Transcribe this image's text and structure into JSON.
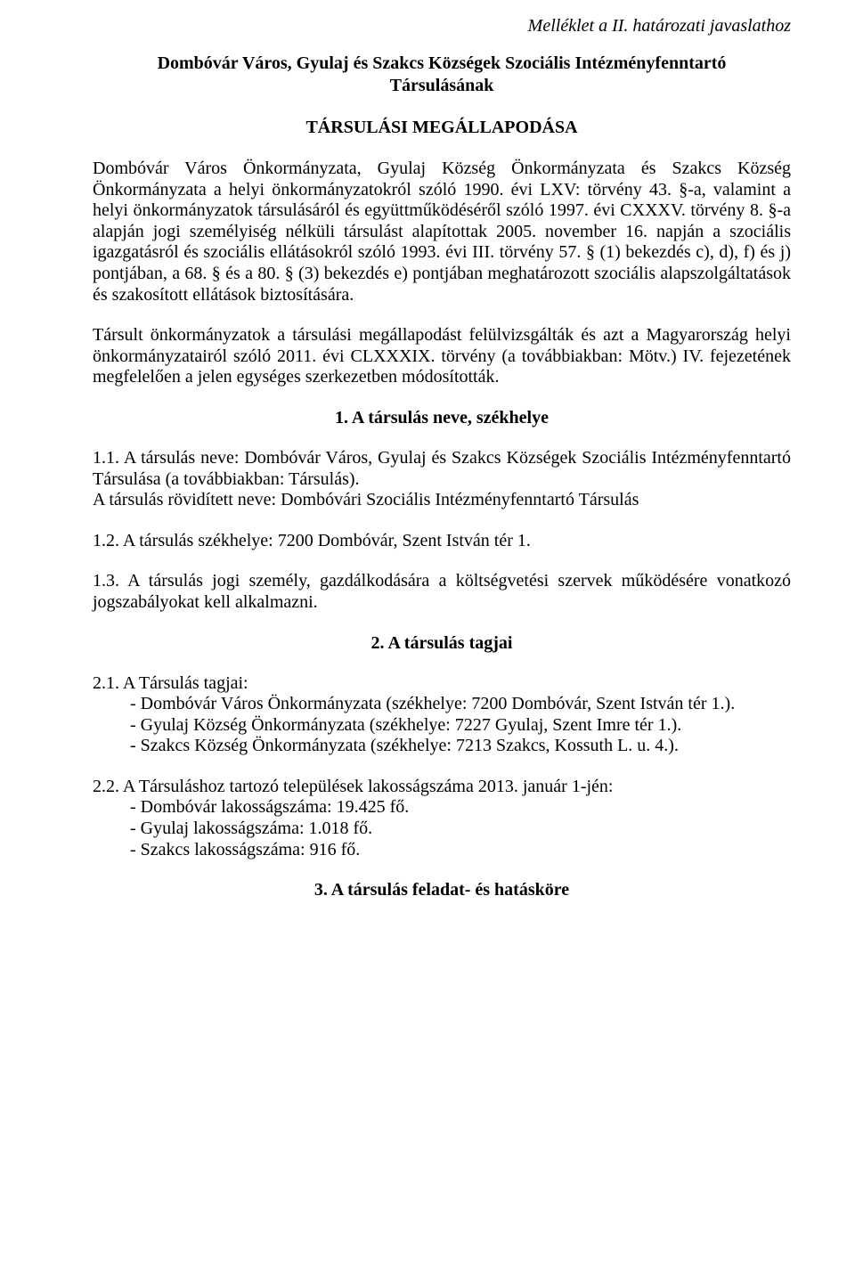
{
  "attachment_note": "Melléklet a II. határozati javaslathoz",
  "title_line1": "Dombóvár Város, Gyulaj és Szakcs Községek Szociális Intézményfenntartó",
  "title_line2": "Társulásának",
  "title_agreement": "TÁRSULÁSI MEGÁLLAPODÁSA",
  "para1": "Dombóvár Város Önkormányzata, Gyulaj Község Önkormányzata és Szakcs Község Önkormányzata a helyi önkormányzatokról szóló 1990. évi LXV: törvény 43. §-a, valamint a helyi önkormányzatok társulásáról és együttműködéséről szóló 1997. évi CXXXV. törvény 8. §-a alapján jogi személyiség nélküli társulást alapítottak 2005. november 16. napján a szociális igazgatásról és szociális ellátásokról szóló 1993. évi III. törvény 57. § (1) bekezdés c), d), f) és j) pontjában, a 68. § és a 80. § (3) bekezdés e) pontjában meghatározott szociális alapszolgáltatások és szakosított ellátások biztosítására.",
  "para2": "Társult önkormányzatok a társulási megállapodást felülvizsgálták és azt a Magyarország helyi önkormányzatairól szóló 2011. évi CLXXXIX. törvény (a továbbiakban: Mötv.) IV. fejezetének megfelelően a jelen egységes szerkezetben módosították.",
  "section1": {
    "heading": "1. A társulás neve, székhelye",
    "p1_1": "1.1. A társulás neve: Dombóvár Város, Gyulaj és Szakcs Községek Szociális Intézményfenntartó Társulása (a továbbiakban: Társulás).",
    "p1_1b": "A társulás rövidített neve: Dombóvári Szociális Intézményfenntartó Társulás",
    "p1_2": "1.2. A társulás székhelye: 7200 Dombóvár, Szent István tér 1.",
    "p1_3": "1.3. A társulás jogi személy, gazdálkodására a költségvetési szervek működésére vonatkozó jogszabályokat kell alkalmazni."
  },
  "section2": {
    "heading": "2. A társulás tagjai",
    "p2_1_lead": "2.1. A Társulás tagjai:",
    "members": [
      "- Dombóvár Város Önkormányzata (székhelye: 7200 Dombóvár, Szent István tér 1.).",
      "- Gyulaj Község Önkormányzata (székhelye: 7227 Gyulaj, Szent Imre tér 1.).",
      "- Szakcs Község Önkormányzata (székhelye: 7213 Szakcs, Kossuth L. u. 4.)."
    ],
    "p2_2_lead": "2.2. A Társuláshoz tartozó települések lakosságszáma 2013. január 1-jén:",
    "populations": [
      "- Dombóvár lakosságszáma: 19.425 fő.",
      "- Gyulaj lakosságszáma: 1.018 fő.",
      "- Szakcs lakosságszáma: 916 fő."
    ]
  },
  "section3": {
    "heading": "3. A társulás feladat- és hatásköre"
  }
}
